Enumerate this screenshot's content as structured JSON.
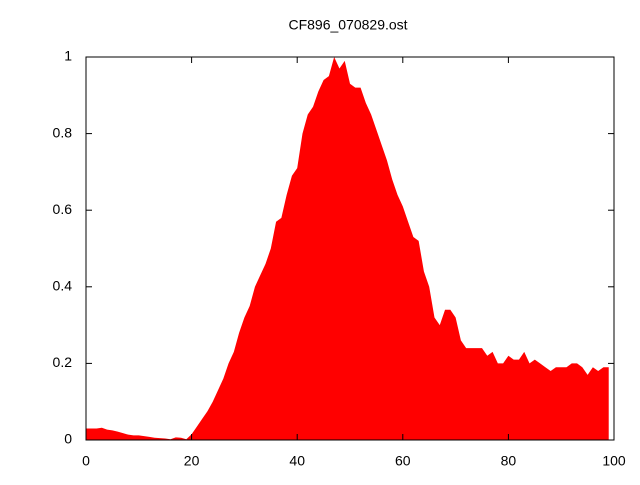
{
  "chart_data": {
    "type": "area",
    "title": "CF896_070829.ost",
    "x": [
      0,
      1,
      2,
      3,
      4,
      5,
      6,
      7,
      8,
      9,
      10,
      11,
      12,
      13,
      14,
      15,
      16,
      17,
      18,
      19,
      20,
      21,
      22,
      23,
      24,
      25,
      26,
      27,
      28,
      29,
      30,
      31,
      32,
      33,
      34,
      35,
      36,
      37,
      38,
      39,
      40,
      41,
      42,
      43,
      44,
      45,
      46,
      47,
      48,
      49,
      50,
      51,
      52,
      53,
      54,
      55,
      56,
      57,
      58,
      59,
      60,
      61,
      62,
      63,
      64,
      65,
      66,
      67,
      68,
      69,
      70,
      71,
      72,
      73,
      74,
      75,
      76,
      77,
      78,
      79,
      80,
      81,
      82,
      83,
      84,
      85,
      86,
      87,
      88,
      89,
      90,
      91,
      92,
      93,
      94,
      95,
      96,
      97,
      98,
      99
    ],
    "series": [
      {
        "color": "#ff0000",
        "values": [
          0.03,
          0.03,
          0.03,
          0.032,
          0.027,
          0.025,
          0.022,
          0.018,
          0.014,
          0.012,
          0.012,
          0.01,
          0.008,
          0.006,
          0.005,
          0.004,
          0.002,
          0.007,
          0.006,
          0.002,
          0.015,
          0.035,
          0.055,
          0.075,
          0.1,
          0.13,
          0.16,
          0.2,
          0.23,
          0.28,
          0.32,
          0.35,
          0.4,
          0.43,
          0.46,
          0.5,
          0.57,
          0.58,
          0.64,
          0.69,
          0.71,
          0.8,
          0.85,
          0.87,
          0.91,
          0.94,
          0.95,
          1.0,
          0.97,
          0.99,
          0.93,
          0.92,
          0.92,
          0.88,
          0.85,
          0.81,
          0.77,
          0.73,
          0.68,
          0.64,
          0.61,
          0.57,
          0.53,
          0.52,
          0.44,
          0.4,
          0.32,
          0.3,
          0.34,
          0.34,
          0.32,
          0.26,
          0.24,
          0.24,
          0.24,
          0.24,
          0.22,
          0.23,
          0.2,
          0.2,
          0.22,
          0.21,
          0.21,
          0.23,
          0.2,
          0.21,
          0.2,
          0.19,
          0.18,
          0.19,
          0.19,
          0.19,
          0.2,
          0.2,
          0.19,
          0.17,
          0.19,
          0.18,
          0.19,
          0.19
        ]
      }
    ],
    "xlim": [
      0,
      100
    ],
    "xticks": [
      0,
      20,
      40,
      60,
      80,
      100
    ],
    "ylim": [
      0,
      1
    ],
    "yticks": [
      0,
      0.2,
      0.4,
      0.6,
      0.8,
      1
    ]
  }
}
